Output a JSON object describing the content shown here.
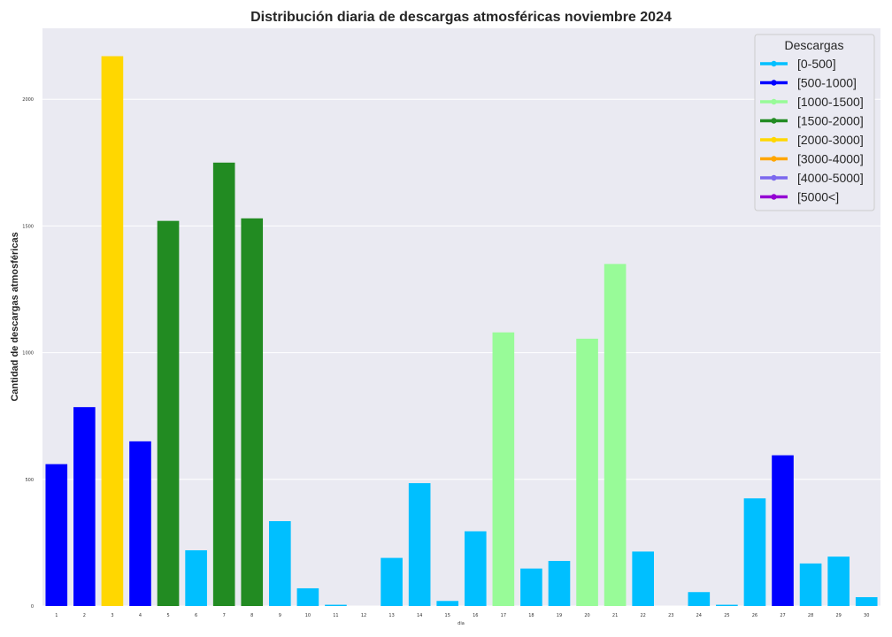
{
  "chart_data": {
    "type": "bar",
    "title": "Distribución diaria de descargas atmosféricas noviembre 2024",
    "xlabel": "dia",
    "ylabel": "Cantidad de descargas atmosféricas",
    "ylim": [
      0,
      2280
    ],
    "yticks": [
      0,
      500,
      1000,
      1500,
      2000
    ],
    "grid": true,
    "legend_position": "top-right",
    "legend_title": "Descargas",
    "legend": [
      {
        "label": "[0-500]",
        "color": "#00bfff"
      },
      {
        "label": "[500-1000]",
        "color": "#0000ff"
      },
      {
        "label": "[1000-1500]",
        "color": "#98fb98"
      },
      {
        "label": "[1500-2000]",
        "color": "#228b22"
      },
      {
        "label": "[2000-3000]",
        "color": "#ffd700"
      },
      {
        "label": "[3000-4000]",
        "color": "#ffa500"
      },
      {
        "label": "[4000-5000]",
        "color": "#7b68ee"
      },
      {
        "label": "[5000<]",
        "color": "#9400d3"
      }
    ],
    "categories": [
      "1",
      "2",
      "3",
      "4",
      "5",
      "6",
      "7",
      "8",
      "9",
      "10",
      "11",
      "12",
      "13",
      "14",
      "15",
      "16",
      "17",
      "18",
      "19",
      "20",
      "21",
      "22",
      "23",
      "24",
      "25",
      "26",
      "27",
      "28",
      "29",
      "30"
    ],
    "values": [
      560,
      785,
      2170,
      650,
      1520,
      220,
      1750,
      1530,
      335,
      70,
      5,
      0,
      190,
      485,
      20,
      295,
      1080,
      148,
      178,
      1055,
      1350,
      215,
      0,
      55,
      5,
      425,
      595,
      168,
      195,
      35
    ],
    "bar_colors": [
      "#0000ff",
      "#0000ff",
      "#ffd700",
      "#0000ff",
      "#228b22",
      "#00bfff",
      "#228b22",
      "#228b22",
      "#00bfff",
      "#00bfff",
      "#00bfff",
      "#00bfff",
      "#00bfff",
      "#00bfff",
      "#00bfff",
      "#00bfff",
      "#98fb98",
      "#00bfff",
      "#00bfff",
      "#98fb98",
      "#98fb98",
      "#00bfff",
      "#00bfff",
      "#00bfff",
      "#00bfff",
      "#00bfff",
      "#0000ff",
      "#00bfff",
      "#00bfff",
      "#00bfff"
    ]
  }
}
